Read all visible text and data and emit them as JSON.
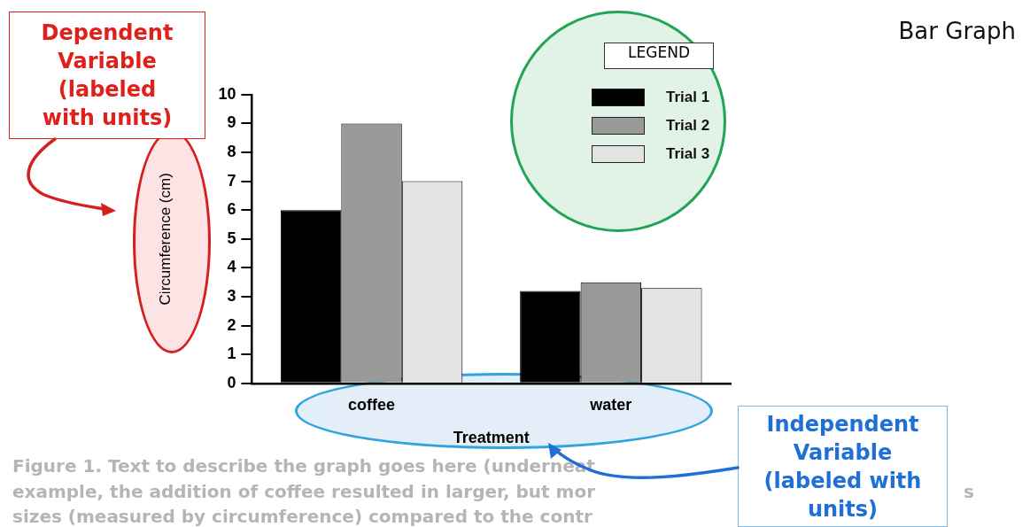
{
  "chart_data": {
    "type": "bar",
    "title": "Bar Graph",
    "xlabel": "Treatment",
    "ylabel": "Circumference (cm)",
    "categories": [
      "coffee",
      "water"
    ],
    "series": [
      {
        "name": "Trial 1",
        "color": "#000000",
        "values": [
          6,
          3.2
        ]
      },
      {
        "name": "Trial 2",
        "color": "#999999",
        "values": [
          9,
          3.5
        ]
      },
      {
        "name": "Trial 3",
        "color": "#e3e3e3",
        "values": [
          7,
          3.3
        ]
      }
    ],
    "ylim": [
      0,
      10
    ],
    "yticks": [
      0,
      1,
      2,
      3,
      4,
      5,
      6,
      7,
      8,
      9,
      10
    ],
    "legend": "top right",
    "legend_title": "LEGEND",
    "annotations": [
      "Dependent Variable (labeled with units)",
      "Independent Variable (labeled with units)",
      "Figure 1.  Text to describe the graph goes here (underneat",
      "example, the addition of coffee resulted in larger, but mor",
      "sizes (measured by circumference) compared to the contr",
      "s"
    ]
  }
}
